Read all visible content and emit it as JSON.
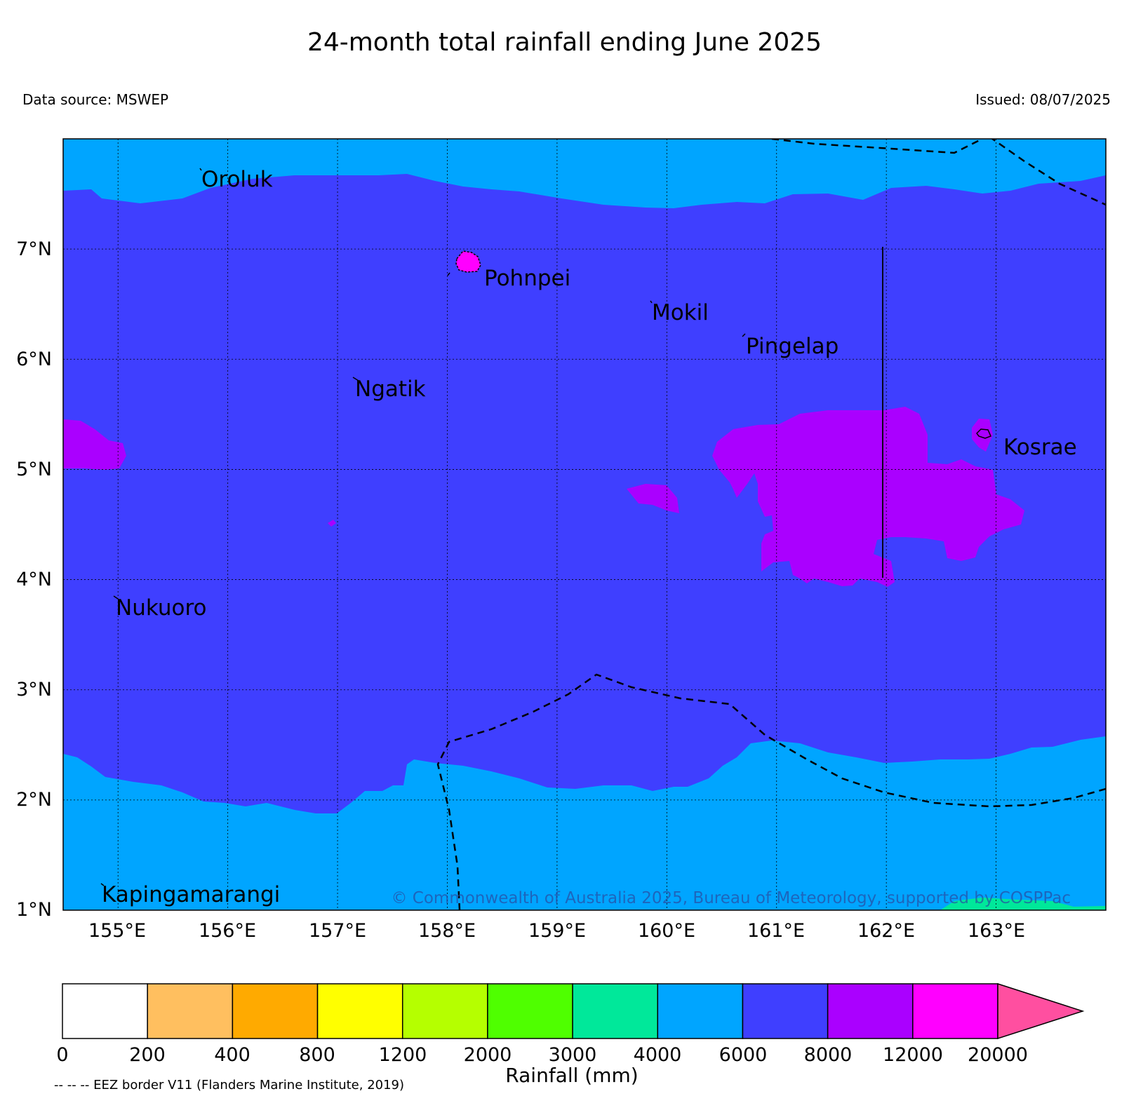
{
  "title": "24-month total rainfall ending June 2025",
  "data_source": "Data source: MSWEP",
  "issued": "Issued: 08/07/2025",
  "copyright": "© Commonwealth of Australia 2025, Bureau of Meteorology, supported by COSPPac",
  "eez_note": "-- -- -- EEZ border V11 (Flanders Marine Institute, 2019)",
  "map": {
    "lon_range": [
      154.5,
      164.0
    ],
    "lat_range": [
      1.0,
      8.0
    ],
    "lon_ticks": [
      "155°E",
      "156°E",
      "157°E",
      "158°E",
      "159°E",
      "160°E",
      "161°E",
      "162°E",
      "163°E"
    ],
    "lat_ticks": [
      "7°N",
      "6°N",
      "5°N",
      "4°N",
      "3°N",
      "2°N",
      "1°N"
    ],
    "places": [
      "Oroluk",
      "Pohnpei",
      "Mokil",
      "Pingelap",
      "Ngatik",
      "Kosrae",
      "Nukuoro",
      "Kapingamarangi"
    ]
  },
  "colorbar": {
    "label": "Rainfall (mm)",
    "ticks": [
      "0",
      "200",
      "400",
      "800",
      "1200",
      "2000",
      "3000",
      "4000",
      "6000",
      "8000",
      "12000",
      "20000"
    ],
    "colors": [
      "#ffffff",
      "#ffbf5f",
      "#ffaa00",
      "#ffff00",
      "#b5ff00",
      "#4fff00",
      "#00e89a",
      "#00a5ff",
      "#3f3fff",
      "#aa00ff",
      "#ff00ff",
      "#ff4fa0"
    ]
  }
}
